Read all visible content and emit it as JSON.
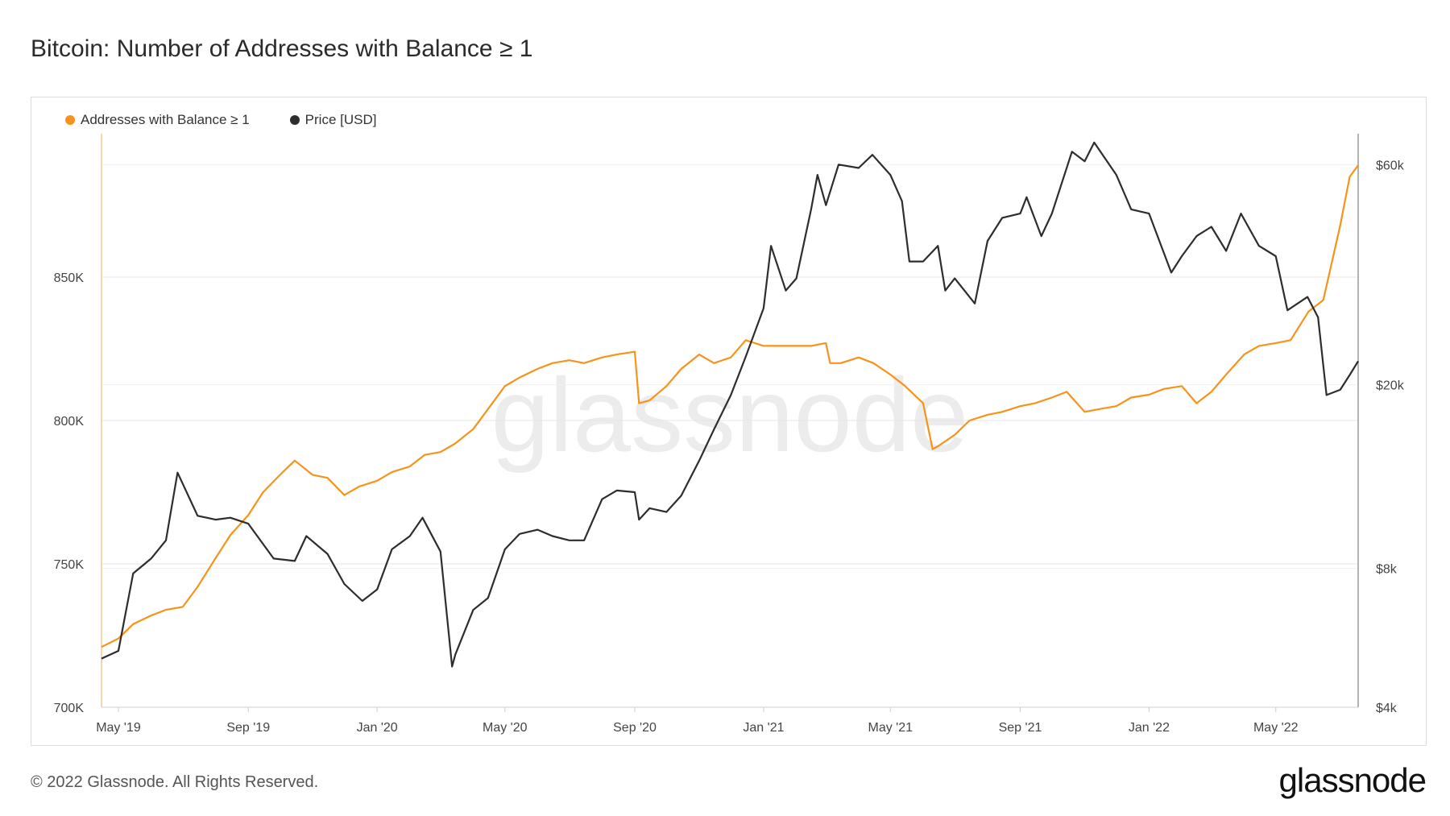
{
  "page": {
    "copyright": "© 2022 Glassnode. All Rights Reserved.",
    "logo": "glassnode",
    "watermark": "glassnode"
  },
  "chart_data": {
    "type": "line",
    "title": "Bitcoin: Number of Addresses with Balance ≥ 1",
    "x_ticks": [
      "May '19",
      "Sep '19",
      "Jan '20",
      "May '20",
      "Sep '20",
      "Jan '21",
      "May '21",
      "Sep '21",
      "Jan '22",
      "May '22"
    ],
    "x_range": [
      "2019-04-15",
      "2022-07-18"
    ],
    "left_axis": {
      "ticks": [
        "700K",
        "750K",
        "800K",
        "850K"
      ],
      "tick_values": [
        700000,
        750000,
        800000,
        850000
      ],
      "range": [
        700000,
        900000
      ]
    },
    "right_axis": {
      "scale": "log",
      "ticks": [
        "$4k",
        "$8k",
        "$20k",
        "$60k"
      ],
      "tick_values": [
        4000,
        8000,
        20000,
        60000
      ],
      "range": [
        4000,
        70000
      ]
    },
    "grid": true,
    "legend_position": "top-left",
    "colors": {
      "addresses": "#f7931a",
      "price": "#2d2d2d",
      "grid": "#e6e6e6",
      "axis": "#cfcfcf"
    },
    "series": [
      {
        "name": "Addresses with Balance ≥ 1",
        "axis": "left",
        "color": "#f7931a",
        "dates": [
          "2019-04-15",
          "2019-05-01",
          "2019-05-15",
          "2019-06-01",
          "2019-06-15",
          "2019-07-01",
          "2019-07-15",
          "2019-08-01",
          "2019-08-15",
          "2019-09-01",
          "2019-09-15",
          "2019-10-01",
          "2019-10-15",
          "2019-11-01",
          "2019-11-15",
          "2019-12-01",
          "2019-12-15",
          "2020-01-01",
          "2020-01-15",
          "2020-02-01",
          "2020-02-15",
          "2020-03-01",
          "2020-03-15",
          "2020-04-01",
          "2020-04-15",
          "2020-05-01",
          "2020-05-15",
          "2020-06-01",
          "2020-06-15",
          "2020-07-01",
          "2020-07-15",
          "2020-08-01",
          "2020-08-15",
          "2020-09-01",
          "2020-09-05",
          "2020-09-15",
          "2020-10-01",
          "2020-10-15",
          "2020-11-01",
          "2020-11-15",
          "2020-12-01",
          "2020-12-15",
          "2021-01-01",
          "2021-01-15",
          "2021-02-01",
          "2021-02-15",
          "2021-03-01",
          "2021-03-05",
          "2021-03-15",
          "2021-04-01",
          "2021-04-15",
          "2021-05-01",
          "2021-05-15",
          "2021-06-01",
          "2021-06-10",
          "2021-06-15",
          "2021-07-01",
          "2021-07-15",
          "2021-08-01",
          "2021-08-15",
          "2021-09-01",
          "2021-09-15",
          "2021-10-01",
          "2021-10-15",
          "2021-11-01",
          "2021-11-15",
          "2021-12-01",
          "2021-12-15",
          "2022-01-01",
          "2022-01-15",
          "2022-02-01",
          "2022-02-15",
          "2022-03-01",
          "2022-03-15",
          "2022-04-01",
          "2022-04-15",
          "2022-05-01",
          "2022-05-15",
          "2022-06-01",
          "2022-06-15",
          "2022-07-01",
          "2022-07-10",
          "2022-07-18"
        ],
        "values": [
          721000,
          724000,
          729000,
          732000,
          734000,
          735000,
          742000,
          752000,
          760000,
          767000,
          775000,
          781000,
          786000,
          781000,
          780000,
          774000,
          777000,
          779000,
          782000,
          784000,
          788000,
          789000,
          792000,
          797000,
          804000,
          812000,
          815000,
          818000,
          820000,
          821000,
          820000,
          822000,
          823000,
          824000,
          806000,
          807000,
          812000,
          818000,
          823000,
          820000,
          822000,
          828000,
          826000,
          826000,
          826000,
          826000,
          827000,
          820000,
          820000,
          822000,
          820000,
          816000,
          812000,
          806000,
          790000,
          791000,
          795000,
          800000,
          802000,
          803000,
          805000,
          806000,
          808000,
          810000,
          803000,
          804000,
          805000,
          808000,
          809000,
          811000,
          812000,
          806000,
          810000,
          816000,
          823000,
          826000,
          827000,
          828000,
          838000,
          842000,
          868000,
          885000,
          889000
        ]
      },
      {
        "name": "Price [USD]",
        "axis": "right",
        "color": "#2d2d2d",
        "dates": [
          "2019-04-15",
          "2019-05-01",
          "2019-05-15",
          "2019-06-01",
          "2019-06-15",
          "2019-06-26",
          "2019-07-15",
          "2019-08-01",
          "2019-08-15",
          "2019-09-01",
          "2019-09-25",
          "2019-10-15",
          "2019-10-26",
          "2019-11-15",
          "2019-12-01",
          "2019-12-18",
          "2020-01-01",
          "2020-01-15",
          "2020-02-01",
          "2020-02-13",
          "2020-03-01",
          "2020-03-12",
          "2020-03-15",
          "2020-04-01",
          "2020-04-15",
          "2020-05-01",
          "2020-05-15",
          "2020-06-01",
          "2020-06-15",
          "2020-07-01",
          "2020-07-15",
          "2020-08-01",
          "2020-08-15",
          "2020-09-01",
          "2020-09-05",
          "2020-09-15",
          "2020-10-01",
          "2020-10-15",
          "2020-11-01",
          "2020-11-15",
          "2020-12-01",
          "2020-12-15",
          "2021-01-01",
          "2021-01-08",
          "2021-01-22",
          "2021-02-01",
          "2021-02-15",
          "2021-02-21",
          "2021-03-01",
          "2021-03-13",
          "2021-04-01",
          "2021-04-14",
          "2021-05-01",
          "2021-05-12",
          "2021-05-19",
          "2021-06-01",
          "2021-06-15",
          "2021-06-22",
          "2021-07-01",
          "2021-07-20",
          "2021-08-01",
          "2021-08-15",
          "2021-09-01",
          "2021-09-07",
          "2021-09-21",
          "2021-10-01",
          "2021-10-20",
          "2021-11-01",
          "2021-11-10",
          "2021-12-01",
          "2021-12-15",
          "2022-01-01",
          "2022-01-22",
          "2022-02-01",
          "2022-02-15",
          "2022-03-01",
          "2022-03-15",
          "2022-03-29",
          "2022-04-15",
          "2022-05-01",
          "2022-05-12",
          "2022-05-31",
          "2022-06-10",
          "2022-06-18",
          "2022-07-01",
          "2022-07-10",
          "2022-07-18"
        ],
        "values": [
          5100,
          5300,
          7800,
          8400,
          9200,
          12900,
          10400,
          10200,
          10300,
          10000,
          8400,
          8300,
          9400,
          8600,
          7400,
          6800,
          7200,
          8800,
          9400,
          10300,
          8700,
          4900,
          5200,
          6500,
          6900,
          8800,
          9500,
          9700,
          9400,
          9200,
          9200,
          11300,
          11800,
          11700,
          10200,
          10800,
          10600,
          11500,
          13700,
          16000,
          19000,
          23000,
          29300,
          40000,
          32000,
          34000,
          48000,
          57000,
          49000,
          60000,
          59000,
          63000,
          57000,
          50000,
          37000,
          37000,
          40000,
          32000,
          34000,
          30000,
          41000,
          46000,
          47000,
          51000,
          42000,
          47000,
          64000,
          61000,
          67000,
          57000,
          48000,
          47000,
          35000,
          38000,
          42000,
          44000,
          39000,
          47000,
          40000,
          38000,
          29000,
          31000,
          28000,
          19000,
          19500,
          21000,
          22500
        ]
      }
    ]
  },
  "legend": {
    "addresses_label": "Addresses with Balance ≥ 1",
    "price_label": "Price [USD]"
  }
}
